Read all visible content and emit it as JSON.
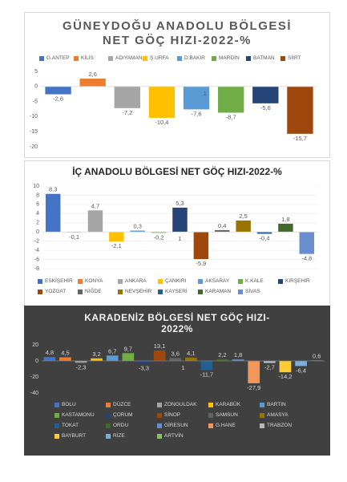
{
  "chart_data": [
    {
      "type": "bar",
      "title": "GÜNEYDOĞU ANADOLU BÖLGESİ NET GÖÇ HIZI-2022-%",
      "categories": [
        "G.ANTEP",
        "KİLİS",
        "ADIYAMAN",
        "Ş.URFA",
        "D.BAKIR",
        "MARDİN",
        "BATMAN",
        "SİİRT"
      ],
      "values": [
        -2.6,
        2.6,
        -7.2,
        -10.4,
        -7.6,
        -8.7,
        -5.6,
        -15.7
      ],
      "value_labels": [
        "-2,6",
        "2,6",
        "-7,2",
        "-10,4",
        "-7,6",
        "-8,7",
        "-5,6",
        "-15,7"
      ],
      "colors": [
        "#4472c4",
        "#ed7d31",
        "#a5a5a5",
        "#ffc000",
        "#5b9bd5",
        "#70ad47",
        "#264478",
        "#9e480e"
      ],
      "ylim": [
        -20,
        5
      ],
      "yticks": [
        5,
        0,
        -5,
        -10,
        -15,
        -20
      ],
      "grid": false,
      "legend": "top",
      "annotation": "1"
    },
    {
      "type": "bar",
      "title": "İÇ ANADOLU BÖLGESİ NET GÖÇ HIZI-2022-%",
      "categories": [
        "ESKİŞEHİR",
        "KONYA",
        "ANKARA",
        "ÇANKIRI",
        "AKSARAY",
        "K.KALE",
        "KIRŞEHİR",
        "YOZGAT",
        "NİĞDE",
        "NEVŞEHİR",
        "KAYSERİ",
        "KARAMAN",
        "SİVAS"
      ],
      "values": [
        8.3,
        -0.1,
        4.7,
        -2.1,
        0.3,
        -0.2,
        5.3,
        -5.9,
        0.4,
        2.5,
        -0.4,
        1.8,
        -4.8
      ],
      "value_labels": [
        "8,3",
        "-0,1",
        "4,7",
        "-2,1",
        "0,3",
        "-0,2",
        "5,3",
        "-5,9",
        "0,4",
        "2,5",
        "-0,4",
        "1,8",
        "-4,8"
      ],
      "colors": [
        "#4472c4",
        "#ed7d31",
        "#a5a5a5",
        "#ffc000",
        "#5b9bd5",
        "#70ad47",
        "#264478",
        "#9e480e",
        "#636363",
        "#997300",
        "#255e91",
        "#43682b",
        "#698ed0"
      ],
      "ylim": [
        -8,
        10
      ],
      "yticks": [
        10,
        8,
        6,
        4,
        2,
        0,
        -2,
        -4,
        -6,
        -8
      ],
      "grid": true,
      "legend": "bottom",
      "annotation": "1"
    },
    {
      "type": "bar",
      "title": "KARADENİZ BÖLGESİ NET GÖÇ HIZI-2022%",
      "categories": [
        "BOLU",
        "DÜZCE",
        "ZONGULDAK",
        "KARABÜK",
        "BARTIN",
        "KASTAMONU",
        "ÇORUM",
        "SİNOP",
        "SAMSUN",
        "AMASYA",
        "TOKAT",
        "ORDU",
        "GİRESUN",
        "G.HANE",
        "TRABZON",
        "BAYBURT",
        "RİZE",
        "ARTVİN"
      ],
      "values": [
        4.8,
        4.5,
        -2.3,
        3.2,
        6.7,
        9.7,
        -3.3,
        13.1,
        3.6,
        4.1,
        -11.7,
        2.2,
        1.8,
        -27.9,
        -2.7,
        -14.2,
        -6.4,
        0.6
      ],
      "value_labels": [
        "4,8",
        "4,5",
        "-2,3",
        "3,2",
        "6,7",
        "9,7",
        "-3,3",
        "13,1",
        "3,6",
        "4,1",
        "-11,7",
        "2,2",
        "1,8",
        "-27,9",
        "-2,7",
        "-14,2",
        "-6,4",
        "0,6"
      ],
      "colors": [
        "#4472c4",
        "#ed7d31",
        "#a5a5a5",
        "#ffc000",
        "#5b9bd5",
        "#70ad47",
        "#264478",
        "#9e480e",
        "#636363",
        "#997300",
        "#255e91",
        "#43682b",
        "#698ed0",
        "#f1975a",
        "#b7b7b7",
        "#ffcd33",
        "#7cafdd",
        "#8cc168"
      ],
      "ylim": [
        -40,
        20
      ],
      "yticks": [
        20,
        0,
        -20,
        -40
      ],
      "grid": false,
      "legend": "bottom",
      "annotation": "1"
    }
  ]
}
